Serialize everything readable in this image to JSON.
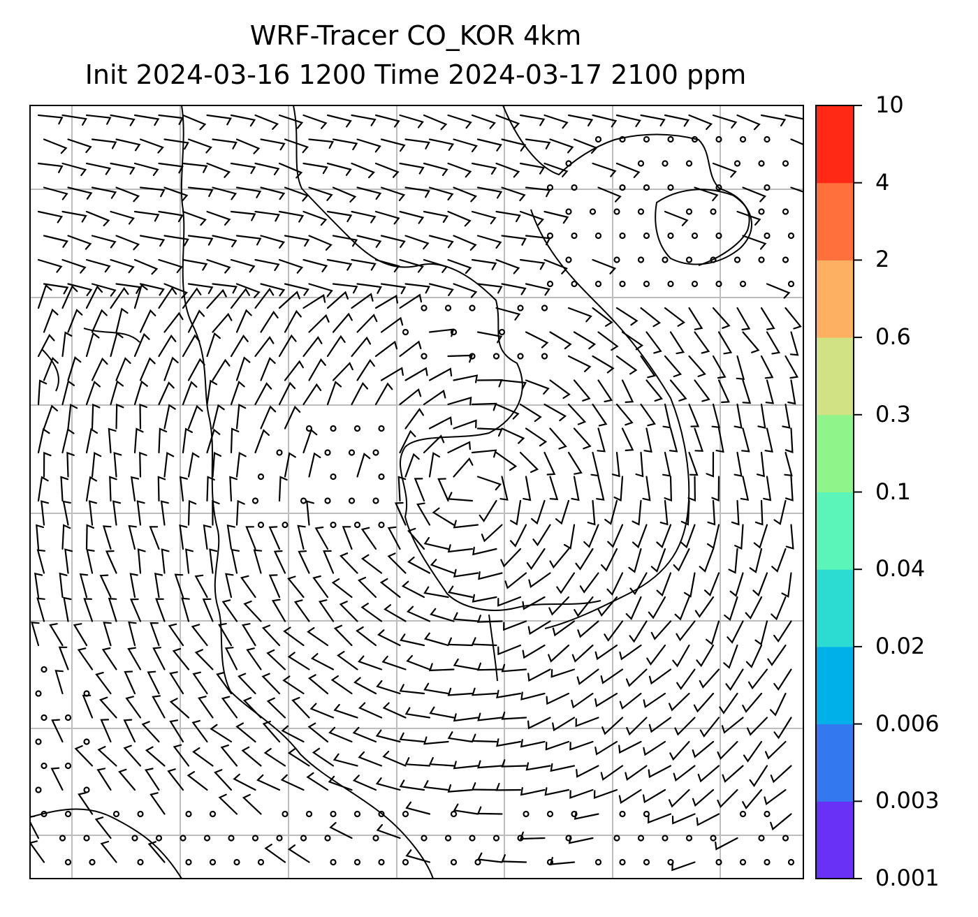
{
  "header": {
    "title_line1": "WRF-Tracer CO_KOR 4km",
    "title_line2": "Init 2024-03-16 1200 Time 2024-03-17 2100 ppm"
  },
  "colorbar": {
    "levels": [
      "0.001",
      "0.003",
      "0.006",
      "0.02",
      "0.04",
      "0.1",
      "0.3",
      "0.6",
      "2",
      "4",
      "10"
    ],
    "colors": [
      "#6930f5",
      "#3478f0",
      "#00b0e8",
      "#2cdbd2",
      "#5cf5b9",
      "#8ff58a",
      "#d0e283",
      "#fdb061",
      "#ff703d",
      "#ff2916"
    ]
  },
  "map": {
    "background": "#ffffff",
    "gridline_color": "#bdbdbd",
    "coastline_color": "#000000",
    "wind_barb_color": "#000000"
  }
}
